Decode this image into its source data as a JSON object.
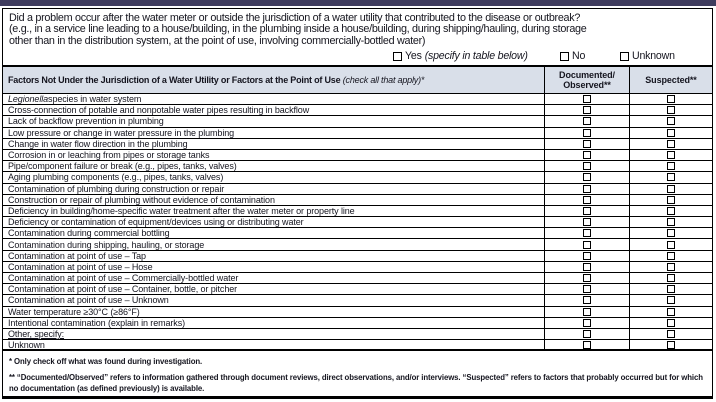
{
  "colors": {
    "top_bar": "#3f3c5e",
    "table_header_bg": "#d9dfe9",
    "border": "#000000"
  },
  "question": {
    "text": "Did a problem occur after the water meter or outside the jurisdiction of a water utility that contributed to the disease or outbreak?\n(e.g., in a service line leading to a house/building, in the plumbing inside a house/building, during shipping/hauling, during storage\nother than in the distribution system, at the point of use, involving commercially-bottled water)",
    "options": [
      {
        "label": "Yes",
        "note": "(specify in table below)"
      },
      {
        "label": "No",
        "note": ""
      },
      {
        "label": "Unknown",
        "note": ""
      }
    ]
  },
  "table": {
    "factor_header": "Factors Not Under the Jurisdiction of a Water Utility or Factors at the Point of Use",
    "factor_header_note": "(check all that apply)*",
    "columns": [
      "Documented/\nObserved**",
      "Suspected**"
    ],
    "rows": [
      {
        "italic": "Legionella",
        "text": " species in water system"
      },
      {
        "text": "Cross-connection of potable and nonpotable water pipes resulting in backflow"
      },
      {
        "text": "Lack of backflow prevention in plumbing"
      },
      {
        "text": "Low pressure or change in water pressure in the plumbing"
      },
      {
        "text": "Change in water flow direction in the plumbing"
      },
      {
        "text": "Corrosion in or leaching from pipes or storage tanks"
      },
      {
        "text": "Pipe/component failure or break (e.g., pipes, tanks, valves)"
      },
      {
        "text": "Aging plumbing components (e.g., pipes, tanks, valves)"
      },
      {
        "text": "Contamination of plumbing during construction or repair"
      },
      {
        "text": "Construction or repair of plumbing without evidence of contamination"
      },
      {
        "text": "Deficiency in building/home-specific water treatment after the water meter or property line"
      },
      {
        "text": "Deficiency or contamination of equipment/devices using or distributing water"
      },
      {
        "text": "Contamination during commercial bottling"
      },
      {
        "text": "Contamination during shipping, hauling, or storage"
      },
      {
        "text": "Contamination at point of use – Tap"
      },
      {
        "text": "Contamination at point of use – Hose"
      },
      {
        "text": "Contamination at point of use – Commercially-bottled water"
      },
      {
        "text": "Contamination at point of use – Container, bottle, or pitcher"
      },
      {
        "text": "Contamination at point of use – Unknown"
      },
      {
        "text": "Water temperature ≥30°C (≥86°F)"
      },
      {
        "text": "Intentional contamination (explain in remarks)"
      },
      {
        "text": "Other, specify:",
        "underline": true
      },
      {
        "text": "Unknown"
      }
    ]
  },
  "footnotes": [
    "* Only check off what was found during investigation.",
    "** “Documented/Observed” refers to information gathered through document reviews, direct observations, and/or interviews. “Suspected” refers to factors that probably occurred but for which no documentation (as defined previously) is available."
  ]
}
